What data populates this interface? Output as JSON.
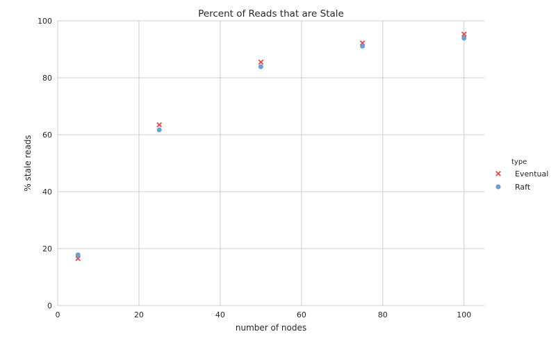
{
  "chart_data": {
    "type": "scatter",
    "title": "Percent of Reads that are Stale",
    "xlabel": "number of nodes",
    "ylabel": "% stale reads",
    "xlim": [
      0,
      105
    ],
    "ylim": [
      0,
      100
    ],
    "xticks": [
      0,
      20,
      40,
      60,
      80,
      100
    ],
    "yticks": [
      0,
      20,
      40,
      60,
      80,
      100
    ],
    "grid": true,
    "legend": {
      "title": "type",
      "placement": "right"
    },
    "series": [
      {
        "name": "Eventual",
        "marker": "x",
        "color": "#e24a4a",
        "x": [
          5,
          25,
          50,
          75,
          100
        ],
        "y": [
          16.5,
          63.5,
          85.5,
          92.2,
          95.3
        ]
      },
      {
        "name": "Raft",
        "marker": "o",
        "color": "#6a9fcf",
        "x": [
          5,
          25,
          50,
          75,
          100
        ],
        "y": [
          17.8,
          61.7,
          83.9,
          91.1,
          93.9
        ]
      }
    ]
  }
}
